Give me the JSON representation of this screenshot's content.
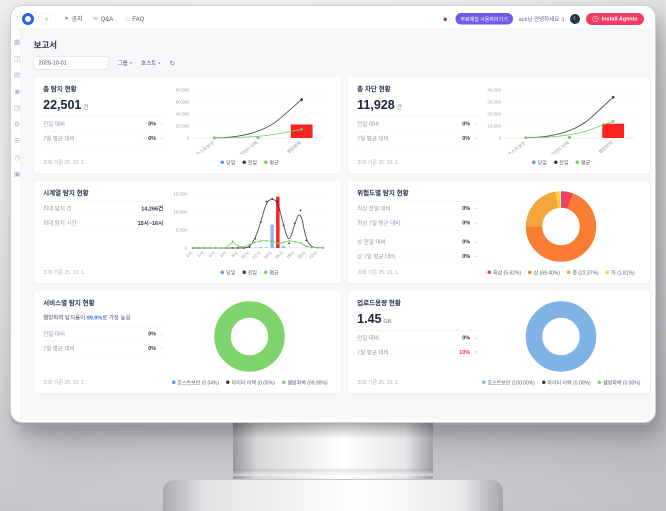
{
  "topbar": {
    "menu": [
      {
        "label": "공지",
        "icon": "announcement-icon",
        "glyph": "⚑"
      },
      {
        "label": "Q&A",
        "icon": "qna-icon",
        "glyph": "✉"
      },
      {
        "label": "FAQ",
        "icon": "faq-icon",
        "glyph": "ⓘ"
      }
    ],
    "trial_badge": "무료체험 사용하러가기",
    "greeting": "ack님 안녕하세요 :)",
    "install_button": "Install Agents"
  },
  "sidebar": {
    "icons": [
      {
        "name": "dashboard",
        "glyph": "▦"
      },
      {
        "name": "agents",
        "glyph": "◫"
      },
      {
        "name": "policy",
        "glyph": "▤"
      },
      {
        "name": "detection",
        "glyph": "◉"
      },
      {
        "name": "network",
        "glyph": "◳"
      },
      {
        "name": "settings",
        "glyph": "⚙"
      },
      {
        "name": "logs",
        "glyph": "☰"
      },
      {
        "name": "history",
        "glyph": "◷"
      },
      {
        "name": "report",
        "glyph": "▣"
      }
    ]
  },
  "page": {
    "title": "보고서",
    "toolbar": {
      "date_value": "2025-10-01",
      "group_label": "그룹",
      "host_label": "호스트"
    },
    "footer_note": "조회 기준 25. 10. 1."
  },
  "cards": [
    {
      "title": "총 탐지 현황",
      "value": "22,501",
      "unit": "건",
      "stats": [
        {
          "label": "전일 대비",
          "value": "0%",
          "trend": "–"
        },
        {
          "label": "7일 평균 대비",
          "value": "0%",
          "trend": "–"
        }
      ]
    },
    {
      "title": "총 차단 현황",
      "value": "11,928",
      "unit": "건",
      "stats": [
        {
          "label": "전일 대비",
          "value": "0%",
          "trend": "–"
        },
        {
          "label": "7일 평균 대비",
          "value": "0%",
          "trend": "–"
        }
      ]
    },
    {
      "title": "시계열 탐지 현황",
      "stats": [
        {
          "label": "최대 탐지 건",
          "value": "14,266건"
        },
        {
          "label": "최대 탐지 시간",
          "value": "15시~16시"
        }
      ]
    },
    {
      "title": "위험도별 탐지 현황",
      "stats": [
        {
          "label": "최상 전일 대비",
          "value": "0%",
          "trend": "–"
        },
        {
          "label": "최상 7일 평균 대비",
          "value": "0%",
          "trend": "–"
        },
        {
          "label": "상 전일 대비",
          "value": "0%",
          "trend": "–",
          "gap": true
        },
        {
          "label": "상 7일 평균 대비",
          "value": "0%",
          "trend": "–"
        }
      ]
    },
    {
      "title": "서비스별 탐지 현황",
      "insight": {
        "prefix": "웹방화벽 탐지율이 ",
        "highlight": "99.9%",
        "suffix": "로 가장 높음"
      },
      "stats": [
        {
          "label": "전일 대비",
          "value": "0%",
          "trend": "–"
        },
        {
          "label": "7일 평균 대비",
          "value": "0%",
          "trend": "–"
        }
      ]
    },
    {
      "title": "업로드용량 현황",
      "value": "1.45",
      "unit": "GB",
      "stats": [
        {
          "label": "전일 대비",
          "value": "0%",
          "trend": "–"
        },
        {
          "label": "7일 평균 대비",
          "value": "10%",
          "trend": "↑",
          "accent": "red"
        }
      ]
    }
  ],
  "chart_data": [
    {
      "type": "line",
      "title": "총 탐지 현황",
      "ylim": [
        0,
        80000
      ],
      "yticks": [
        0,
        20000,
        40000,
        60000,
        80000
      ],
      "grid": true,
      "legend_position": "bottom",
      "categories": [
        "호스트보안",
        "마이터 어택",
        "웹방화벽"
      ],
      "series": [
        {
          "name": "전일",
          "color": "#3a3a3a",
          "values": [
            300,
            600,
            64000
          ]
        },
        {
          "name": "평균",
          "color": "#71cf5d",
          "values": [
            250,
            550,
            14500
          ]
        }
      ],
      "bars": [
        {
          "name": "당일",
          "x": 2,
          "value": 22501,
          "color": "#fb2222"
        }
      ],
      "legend": [
        {
          "label": "당일",
          "color": "#5b9be8"
        },
        {
          "label": "전일",
          "color": "#3a3a3a"
        },
        {
          "label": "평균",
          "color": "#71cf5d"
        }
      ]
    },
    {
      "type": "line",
      "title": "총 차단 현황",
      "ylim": [
        0,
        40000
      ],
      "yticks": [
        0,
        10000,
        20000,
        30000,
        40000
      ],
      "grid": true,
      "legend_position": "bottom",
      "categories": [
        "호스트보안",
        "마이터 어택",
        "웹방화벽"
      ],
      "series": [
        {
          "name": "전일",
          "color": "#3a3a3a",
          "values": [
            250,
            500,
            34000
          ]
        },
        {
          "name": "평균",
          "color": "#71cf5d",
          "values": [
            200,
            450,
            14000
          ]
        }
      ],
      "bars": [
        {
          "name": "당일",
          "x": 2,
          "value": 11928,
          "color": "#fb2222"
        }
      ],
      "legend": [
        {
          "label": "당일",
          "color": "#5b9be8"
        },
        {
          "label": "전일",
          "color": "#3a3a3a"
        },
        {
          "label": "평균",
          "color": "#71cf5d"
        }
      ]
    },
    {
      "type": "line",
      "title": "시계열 탐지 현황",
      "ylim": [
        0,
        15000
      ],
      "yticks": [
        0,
        5000,
        10000,
        15000
      ],
      "grid": true,
      "legend_position": "bottom",
      "categories": [
        "0시",
        "1시",
        "2시",
        "3시",
        "4시",
        "5시",
        "6시",
        "7시",
        "8시",
        "9시",
        "10시",
        "11시",
        "12시",
        "13시",
        "14시",
        "15시",
        "16시",
        "17시",
        "18시",
        "19시",
        "20시",
        "21시",
        "22시",
        "23시"
      ],
      "series": [
        {
          "name": "전일",
          "color": "#3a3a3a",
          "values": [
            0,
            0,
            0,
            0,
            0,
            0,
            0,
            0,
            0,
            0,
            250,
            2600,
            7200,
            12900,
            13650,
            12900,
            6300,
            1300,
            6900,
            10450,
            2100,
            250,
            80,
            40
          ]
        },
        {
          "name": "평균",
          "color": "#71cf5d",
          "values": [
            120,
            90,
            70,
            60,
            50,
            60,
            90,
            1900,
            350,
            250,
            900,
            1600,
            1950,
            2050,
            1850,
            1250,
            1500,
            2050,
            1750,
            1450,
            420,
            180,
            120,
            90
          ]
        }
      ],
      "bars": [
        {
          "name": "당일",
          "x": 11,
          "value": 150,
          "color": "#8cbcee"
        },
        {
          "name": "당일",
          "x": 12,
          "value": 260,
          "color": "#8cbcee"
        },
        {
          "name": "당일",
          "x": 13,
          "value": 220,
          "color": "#8cbcee"
        },
        {
          "name": "당일",
          "x": 14,
          "value": 6500,
          "color": "#8cbcee"
        },
        {
          "name": "당일",
          "x": 15,
          "value": 14266,
          "color": "#fb2222"
        },
        {
          "name": "당일",
          "x": 16,
          "value": 600,
          "color": "#8cbcee"
        }
      ],
      "legend": [
        {
          "label": "당일",
          "color": "#5b9be8"
        },
        {
          "label": "전일",
          "color": "#3a3a3a"
        },
        {
          "label": "평균",
          "color": "#71cf5d"
        }
      ]
    },
    {
      "type": "pie",
      "title": "위험도별 탐지 현황",
      "legend_position": "bottom",
      "slices": [
        {
          "label": "최상",
          "pct": 5.62,
          "color": "#f43f5e"
        },
        {
          "label": "상",
          "pct": 69.4,
          "color": "#fb7d33"
        },
        {
          "label": "중",
          "pct": 22.37,
          "color": "#f2a63b"
        },
        {
          "label": "하",
          "pct": 1.81,
          "color": "#f5d327"
        }
      ]
    },
    {
      "type": "pie",
      "title": "서비스별 탐지 현황",
      "legend_position": "bottom",
      "slices": [
        {
          "label": "호스트보안",
          "pct": 0.04,
          "color": "#4f97e8"
        },
        {
          "label": "마이터 어택",
          "pct": 0.05,
          "color": "#3a3a3a"
        },
        {
          "label": "웹방화벽",
          "pct": 99.9,
          "color": "#7ed36b"
        }
      ]
    },
    {
      "type": "pie",
      "title": "업로드용량 현황",
      "legend_position": "bottom",
      "slices": [
        {
          "label": "호스트보안",
          "pct": 100.0,
          "color": "#7fb3e6"
        },
        {
          "label": "마이터 어택",
          "pct": 0.0,
          "color": "#3a3a3a"
        },
        {
          "label": "웹방화벽",
          "pct": 0.0,
          "color": "#7ed36b"
        }
      ]
    }
  ]
}
